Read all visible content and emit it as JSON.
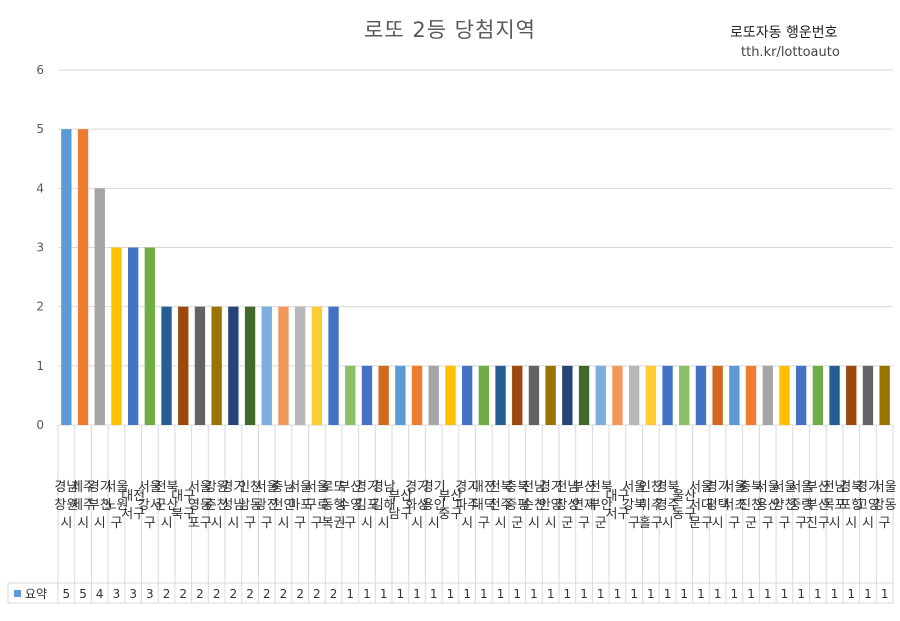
{
  "chart_data": {
    "type": "bar",
    "title": "로또 2등 당첨지역",
    "xlabel": "",
    "ylabel": "",
    "ylim": [
      0,
      6
    ],
    "yticks": [
      0,
      1,
      2,
      3,
      4,
      5,
      6
    ],
    "grid": true,
    "legend": "bottom-left (data table)",
    "categories": [
      "경남창원시",
      "제주제주시",
      "경기부천시",
      "서울노원구",
      "대전서구",
      "서울강서구",
      "전북군산시",
      "대구북구",
      "서울영등포구",
      "강원춘천시",
      "경기성남시",
      "인천남동구",
      "서울광진구",
      "충남천안시",
      "서울마포구",
      "서울구로구",
      "로또동행복권",
      "부산수영구",
      "경기김포시",
      "경남김해시",
      "부산남구",
      "경기화성시",
      "경기용인시",
      "부산중구",
      "경기파주시",
      "대전대덕구",
      "전북전주시",
      "충북증평군",
      "전남순천시",
      "경기안양시",
      "전남장성군",
      "부산연제구",
      "전북부안군",
      "대구서구",
      "서울강북구",
      "인천미추홀구",
      "경북경주시",
      "울산동구",
      "서울서대문구",
      "경기평택시",
      "서울서초구",
      "충북진천군",
      "서울용산구",
      "서울양천구",
      "서울중랑구",
      "부산부산진구",
      "전남목포시",
      "경북포항시",
      "경기고양시",
      "서울강동구"
    ],
    "series": [
      {
        "name": "요약",
        "values": [
          5,
          5,
          4,
          3,
          3,
          3,
          2,
          2,
          2,
          2,
          2,
          2,
          2,
          2,
          2,
          2,
          2,
          1,
          1,
          1,
          1,
          1,
          1,
          1,
          1,
          1,
          1,
          1,
          1,
          1,
          1,
          1,
          1,
          1,
          1,
          1,
          1,
          1,
          1,
          1,
          1,
          1,
          1,
          1,
          1,
          1,
          1,
          1,
          1,
          1
        ]
      }
    ],
    "colors": [
      "#5B9BD5",
      "#ED7D31",
      "#A5A5A5",
      "#FFC000",
      "#4472C4",
      "#70AD47",
      "#255E91",
      "#9E480E",
      "#636363",
      "#997300",
      "#264478",
      "#43682B",
      "#7CAFDD",
      "#F1975A",
      "#B7B7B7",
      "#FFCD33",
      "#4472C4",
      "#8CC168",
      "#4472C4",
      "#D2691E"
    ]
  },
  "watermark": {
    "name": "로또자동 행운번호",
    "url": "tth.kr/lottoauto"
  }
}
